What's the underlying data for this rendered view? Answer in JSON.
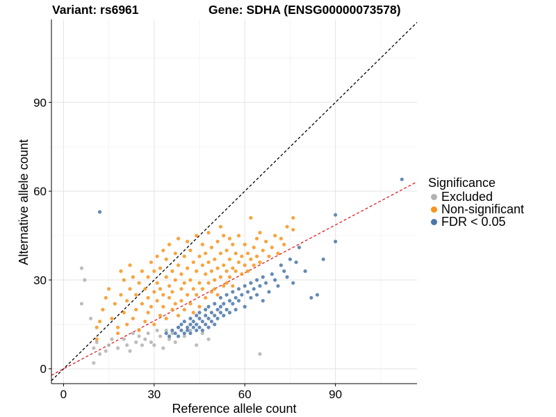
{
  "header": {
    "variant_text": "Variant: rs6961",
    "gene_text": "Gene: SDHA (ENSG00000073578)"
  },
  "chart_data": {
    "type": "scatter",
    "xlabel": "Reference allele count",
    "ylabel": "Alternative allele count",
    "xlim": [
      -4,
      117
    ],
    "ylim": [
      -5,
      118
    ],
    "x_ticks": [
      0,
      30,
      60,
      90
    ],
    "y_ticks": [
      0,
      30,
      60,
      90
    ],
    "grid": true,
    "reference_lines": [
      {
        "name": "identity",
        "slope": 1,
        "intercept": 0,
        "color": "#000000",
        "style": "dashed"
      },
      {
        "name": "fit",
        "slope": 0.54,
        "intercept": 0,
        "color": "#e41a1c",
        "style": "dashed"
      }
    ],
    "legend": {
      "title": "Significance",
      "placement": "right",
      "entries": [
        {
          "label": "Excluded",
          "color": "#b2b2b2"
        },
        {
          "label": "Non-significant",
          "color": "#f7941d"
        },
        {
          "label": "FDR < 0.05",
          "color": "#4a76a8"
        }
      ]
    },
    "series": [
      {
        "name": "Excluded",
        "color": "#b2b2b2",
        "points": [
          [
            6,
            34
          ],
          [
            7,
            30
          ],
          [
            6,
            22
          ],
          [
            9,
            17
          ],
          [
            10,
            7
          ],
          [
            10,
            2
          ],
          [
            11,
            9
          ],
          [
            12,
            5
          ],
          [
            14,
            6
          ],
          [
            15,
            8
          ],
          [
            16,
            10
          ],
          [
            18,
            7
          ],
          [
            20,
            10
          ],
          [
            21,
            8
          ],
          [
            22,
            6
          ],
          [
            23,
            12
          ],
          [
            24,
            9
          ],
          [
            25,
            11
          ],
          [
            26,
            8
          ],
          [
            27,
            10
          ],
          [
            28,
            12
          ],
          [
            29,
            9
          ],
          [
            30,
            8
          ],
          [
            31,
            13
          ],
          [
            32,
            11
          ],
          [
            33,
            7
          ],
          [
            34,
            13
          ],
          [
            35,
            10
          ],
          [
            36,
            12
          ],
          [
            37,
            9
          ],
          [
            38,
            14
          ],
          [
            40,
            11
          ],
          [
            42,
            13
          ],
          [
            44,
            8
          ],
          [
            46,
            12
          ],
          [
            48,
            10
          ],
          [
            65,
            5
          ]
        ]
      },
      {
        "name": "FDR < 0.05",
        "color": "#4a76a8",
        "points": [
          [
            12,
            53
          ],
          [
            34,
            12
          ],
          [
            35,
            11
          ],
          [
            36,
            13
          ],
          [
            37,
            12
          ],
          [
            38,
            14
          ],
          [
            38,
            11
          ],
          [
            39,
            15
          ],
          [
            39,
            13
          ],
          [
            40,
            12
          ],
          [
            40,
            16
          ],
          [
            41,
            14
          ],
          [
            41,
            13
          ],
          [
            42,
            15
          ],
          [
            42,
            12
          ],
          [
            42,
            17
          ],
          [
            43,
            14
          ],
          [
            43,
            16
          ],
          [
            44,
            13
          ],
          [
            44,
            18
          ],
          [
            44,
            15
          ],
          [
            45,
            17
          ],
          [
            45,
            14
          ],
          [
            45,
            19
          ],
          [
            46,
            16
          ],
          [
            46,
            13
          ],
          [
            47,
            18
          ],
          [
            47,
            15
          ],
          [
            47,
            20
          ],
          [
            48,
            17
          ],
          [
            48,
            14
          ],
          [
            48,
            21
          ],
          [
            49,
            19
          ],
          [
            49,
            16
          ],
          [
            50,
            18
          ],
          [
            50,
            22
          ],
          [
            50,
            15
          ],
          [
            51,
            20
          ],
          [
            51,
            17
          ],
          [
            52,
            21
          ],
          [
            52,
            19
          ],
          [
            52,
            24
          ],
          [
            53,
            18
          ],
          [
            53,
            22
          ],
          [
            54,
            20
          ],
          [
            54,
            25
          ],
          [
            55,
            23
          ],
          [
            55,
            19
          ],
          [
            56,
            22
          ],
          [
            56,
            26
          ],
          [
            57,
            24
          ],
          [
            57,
            20
          ],
          [
            58,
            27
          ],
          [
            58,
            23
          ],
          [
            59,
            25
          ],
          [
            60,
            21
          ],
          [
            60,
            28
          ],
          [
            61,
            26
          ],
          [
            62,
            24
          ],
          [
            62,
            29
          ],
          [
            63,
            27
          ],
          [
            64,
            25
          ],
          [
            64,
            30
          ],
          [
            65,
            28
          ],
          [
            66,
            23
          ],
          [
            66,
            31
          ],
          [
            67,
            29
          ],
          [
            68,
            26
          ],
          [
            69,
            32
          ],
          [
            70,
            30
          ],
          [
            71,
            28
          ],
          [
            72,
            35
          ],
          [
            73,
            33
          ],
          [
            74,
            31
          ],
          [
            75,
            37
          ],
          [
            76,
            29
          ],
          [
            77,
            36
          ],
          [
            78,
            41
          ],
          [
            80,
            33
          ],
          [
            82,
            24
          ],
          [
            84,
            25
          ],
          [
            86,
            37
          ],
          [
            90,
            52
          ],
          [
            90,
            43
          ],
          [
            112,
            64
          ]
        ]
      },
      {
        "name": "Non-significant",
        "color": "#f7941d",
        "points": [
          [
            11,
            14
          ],
          [
            11,
            10
          ],
          [
            12,
            16
          ],
          [
            13,
            20
          ],
          [
            14,
            24
          ],
          [
            15,
            27
          ],
          [
            16,
            17
          ],
          [
            17,
            22
          ],
          [
            18,
            14
          ],
          [
            18,
            12
          ],
          [
            19,
            25
          ],
          [
            19,
            33
          ],
          [
            20,
            30
          ],
          [
            20,
            19
          ],
          [
            21,
            15
          ],
          [
            21,
            23
          ],
          [
            22,
            27
          ],
          [
            22,
            35
          ],
          [
            23,
            31
          ],
          [
            23,
            17
          ],
          [
            24,
            20
          ],
          [
            24,
            25
          ],
          [
            25,
            29
          ],
          [
            25,
            13
          ],
          [
            26,
            33
          ],
          [
            26,
            22
          ],
          [
            27,
            16
          ],
          [
            27,
            27
          ],
          [
            28,
            24
          ],
          [
            28,
            31
          ],
          [
            28,
            19
          ],
          [
            29,
            36
          ],
          [
            29,
            21
          ],
          [
            30,
            26
          ],
          [
            30,
            33
          ],
          [
            30,
            15
          ],
          [
            31,
            38
          ],
          [
            31,
            23
          ],
          [
            31,
            29
          ],
          [
            32,
            18
          ],
          [
            32,
            27
          ],
          [
            32,
            34
          ],
          [
            33,
            40
          ],
          [
            33,
            21
          ],
          [
            33,
            25
          ],
          [
            34,
            31
          ],
          [
            34,
            17
          ],
          [
            34,
            37
          ],
          [
            35,
            24
          ],
          [
            35,
            28
          ],
          [
            35,
            42
          ],
          [
            36,
            20
          ],
          [
            36,
            33
          ],
          [
            36,
            26
          ],
          [
            37,
            39
          ],
          [
            37,
            22
          ],
          [
            37,
            30
          ],
          [
            38,
            35
          ],
          [
            38,
            18
          ],
          [
            38,
            44
          ],
          [
            39,
            27
          ],
          [
            39,
            32
          ],
          [
            39,
            23
          ],
          [
            40,
            38
          ],
          [
            40,
            20
          ],
          [
            40,
            29
          ],
          [
            41,
            43
          ],
          [
            41,
            25
          ],
          [
            41,
            34
          ],
          [
            42,
            30
          ],
          [
            42,
            22
          ],
          [
            42,
            40
          ],
          [
            43,
            27
          ],
          [
            43,
            36
          ],
          [
            43,
            19
          ],
          [
            44,
            33
          ],
          [
            44,
            45
          ],
          [
            44,
            25
          ],
          [
            45,
            29
          ],
          [
            45,
            38
          ],
          [
            45,
            21
          ],
          [
            46,
            35
          ],
          [
            46,
            27
          ],
          [
            46,
            42
          ],
          [
            47,
            32
          ],
          [
            47,
            24
          ],
          [
            47,
            39
          ],
          [
            48,
            29
          ],
          [
            48,
            36
          ],
          [
            48,
            46
          ],
          [
            49,
            26
          ],
          [
            49,
            33
          ],
          [
            49,
            41
          ],
          [
            50,
            30
          ],
          [
            50,
            37
          ],
          [
            50,
            27
          ],
          [
            51,
            43
          ],
          [
            51,
            34
          ],
          [
            51,
            25
          ],
          [
            52,
            31
          ],
          [
            52,
            39
          ],
          [
            52,
            48
          ],
          [
            53,
            28
          ],
          [
            53,
            35
          ],
          [
            53,
            45
          ],
          [
            54,
            33
          ],
          [
            54,
            40
          ],
          [
            54,
            29
          ],
          [
            55,
            37
          ],
          [
            55,
            44
          ],
          [
            55,
            31
          ],
          [
            56,
            42
          ],
          [
            56,
            34
          ],
          [
            56,
            28
          ],
          [
            57,
            39
          ],
          [
            57,
            33
          ],
          [
            58,
            36
          ],
          [
            58,
            45
          ],
          [
            59,
            32
          ],
          [
            59,
            38
          ],
          [
            60,
            35
          ],
          [
            60,
            42
          ],
          [
            61,
            33
          ],
          [
            61,
            39
          ],
          [
            62,
            37
          ],
          [
            62,
            51
          ],
          [
            63,
            35
          ],
          [
            63,
            41
          ],
          [
            64,
            38
          ],
          [
            64,
            44
          ],
          [
            65,
            36
          ],
          [
            65,
            46
          ],
          [
            66,
            40
          ],
          [
            67,
            43
          ],
          [
            68,
            38
          ],
          [
            69,
            41
          ],
          [
            70,
            45
          ],
          [
            71,
            39
          ],
          [
            72,
            44
          ],
          [
            73,
            42
          ],
          [
            74,
            48
          ],
          [
            76,
            47
          ],
          [
            76,
            51
          ]
        ]
      }
    ]
  }
}
